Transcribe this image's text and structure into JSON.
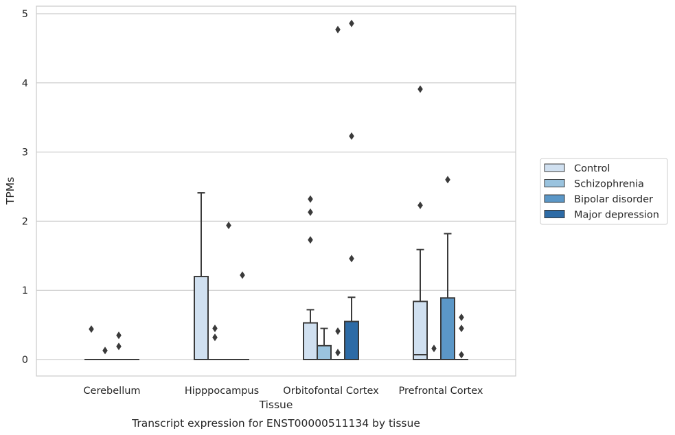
{
  "chart_data": {
    "type": "box",
    "xlabel": "Tissue",
    "ylabel": "TPMs",
    "caption": "Transcript expression for ENST00000511134 by tissue",
    "categories": [
      "Cerebellum",
      "Hipppocampus",
      "Orbitofontal Cortex",
      "Prefrontal Cortex"
    ],
    "ylim": [
      -0.24,
      5.12
    ],
    "yticks": [
      0,
      1,
      2,
      3,
      4,
      5
    ],
    "grid": true,
    "legend_position": "center-right",
    "series": [
      {
        "name": "Control",
        "color": "#d0e0f0",
        "boxes": [
          {
            "q1": 0,
            "median": 0,
            "q3": 0,
            "whisker_low": 0,
            "whisker_high": 0,
            "outliers": [
              0.44
            ]
          },
          {
            "q1": 0,
            "median": 0,
            "q3": 1.2,
            "whisker_low": 0,
            "whisker_high": 2.41,
            "outliers": []
          },
          {
            "q1": 0,
            "median": 0,
            "q3": 0.53,
            "whisker_low": 0,
            "whisker_high": 0.72,
            "outliers": [
              1.73,
              2.13,
              2.32
            ]
          },
          {
            "q1": 0,
            "median": 0.07,
            "q3": 0.84,
            "whisker_low": 0,
            "whisker_high": 1.59,
            "outliers": [
              2.23,
              3.91
            ]
          }
        ]
      },
      {
        "name": "Schizophrenia",
        "color": "#9ac3de",
        "boxes": [
          {
            "q1": 0,
            "median": 0,
            "q3": 0,
            "whisker_low": 0,
            "whisker_high": 0,
            "outliers": [
              0.13
            ]
          },
          {
            "q1": 0,
            "median": 0,
            "q3": 0,
            "whisker_low": 0,
            "whisker_high": 0,
            "outliers": [
              0.32,
              0.45
            ]
          },
          {
            "q1": 0,
            "median": 0,
            "q3": 0.2,
            "whisker_low": 0,
            "whisker_high": 0.45,
            "outliers": []
          },
          {
            "q1": 0,
            "median": 0,
            "q3": 0,
            "whisker_low": 0,
            "whisker_high": 0,
            "outliers": [
              0.16
            ]
          }
        ]
      },
      {
        "name": "Bipolar disorder",
        "color": "#5b97c7",
        "boxes": [
          {
            "q1": 0,
            "median": 0,
            "q3": 0,
            "whisker_low": 0,
            "whisker_high": 0,
            "outliers": [
              0.19,
              0.35
            ]
          },
          {
            "q1": 0,
            "median": 0,
            "q3": 0,
            "whisker_low": 0,
            "whisker_high": 0,
            "outliers": [
              1.94
            ]
          },
          {
            "q1": 0,
            "median": 0,
            "q3": 0,
            "whisker_low": 0,
            "whisker_high": 0,
            "outliers": [
              0.1,
              0.41,
              4.77
            ]
          },
          {
            "q1": 0,
            "median": 0,
            "q3": 0.89,
            "whisker_low": 0,
            "whisker_high": 1.82,
            "outliers": [
              2.6
            ]
          }
        ]
      },
      {
        "name": "Major depression",
        "color": "#2d6ba6",
        "boxes": [
          {
            "q1": 0,
            "median": 0,
            "q3": 0,
            "whisker_low": 0,
            "whisker_high": 0,
            "outliers": []
          },
          {
            "q1": 0,
            "median": 0,
            "q3": 0,
            "whisker_low": 0,
            "whisker_high": 0,
            "outliers": [
              1.22
            ]
          },
          {
            "q1": 0,
            "median": 0,
            "q3": 0.55,
            "whisker_low": 0,
            "whisker_high": 0.9,
            "outliers": [
              1.46,
              3.23,
              4.86
            ]
          },
          {
            "q1": 0,
            "median": 0,
            "q3": 0,
            "whisker_low": 0,
            "whisker_high": 0,
            "outliers": [
              0.07,
              0.45,
              0.61
            ]
          }
        ]
      }
    ]
  }
}
